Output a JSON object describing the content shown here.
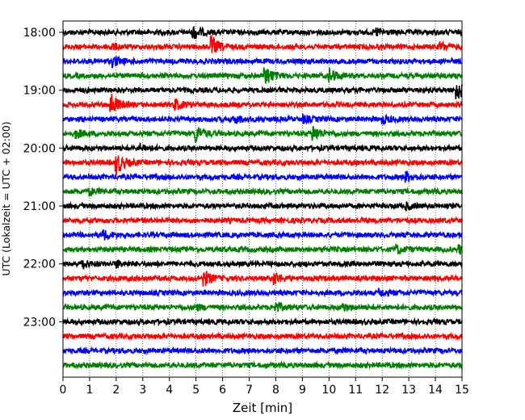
{
  "chart_data": {
    "type": "line",
    "xlabel": "Zeit  [min]",
    "ylabel": "UTC (Lokalzeit = UTC + 02:00)",
    "xlim": [
      0,
      15
    ],
    "x_ticks": [
      "0",
      "1",
      "2",
      "3",
      "4",
      "5",
      "6",
      "7",
      "8",
      "9",
      "10",
      "11",
      "12",
      "13",
      "14",
      "15"
    ],
    "y_tick_labels": [
      "18:00",
      "19:00",
      "20:00",
      "21:00",
      "22:00",
      "23:00"
    ],
    "grid": "vertical dotted lines at each minute",
    "trace_interval_min": 15,
    "trace_colors": [
      "#000000",
      "#ff0000",
      "#0000ff",
      "#008000"
    ],
    "traces": [
      {
        "start": "18:00",
        "color": "#000000",
        "events": [
          [
            4.9,
            0.9
          ],
          [
            11.8,
            0.5
          ]
        ]
      },
      {
        "start": "18:15",
        "color": "#ff0000",
        "events": [
          [
            1.8,
            0.4
          ],
          [
            5.6,
            1.2
          ],
          [
            14.2,
            0.5
          ]
        ]
      },
      {
        "start": "18:30",
        "color": "#0000ff",
        "events": [
          [
            1.9,
            0.6
          ]
        ]
      },
      {
        "start": "18:45",
        "color": "#008000",
        "events": [
          [
            7.6,
            1.3
          ],
          [
            10.0,
            1.0
          ]
        ]
      },
      {
        "start": "19:00",
        "color": "#000000",
        "events": [
          [
            14.8,
            1.3
          ]
        ]
      },
      {
        "start": "19:15",
        "color": "#ff0000",
        "events": [
          [
            1.8,
            1.5
          ],
          [
            4.2,
            0.7
          ]
        ]
      },
      {
        "start": "19:30",
        "color": "#0000ff",
        "events": [
          [
            6.5,
            0.5
          ],
          [
            9.0,
            0.5
          ],
          [
            12.0,
            0.5
          ]
        ]
      },
      {
        "start": "19:45",
        "color": "#008000",
        "events": [
          [
            0.5,
            0.5
          ],
          [
            5.0,
            1.1
          ],
          [
            9.4,
            1.0
          ]
        ]
      },
      {
        "start": "20:00",
        "color": "#000000",
        "events": [
          [
            2.9,
            0.4
          ]
        ]
      },
      {
        "start": "20:15",
        "color": "#ff0000",
        "events": [
          [
            2.0,
            1.5
          ]
        ]
      },
      {
        "start": "20:30",
        "color": "#0000ff",
        "events": [
          [
            12.9,
            0.6
          ]
        ]
      },
      {
        "start": "20:45",
        "color": "#008000",
        "events": [
          [
            1.0,
            0.4
          ]
        ]
      },
      {
        "start": "21:00",
        "color": "#000000",
        "events": [
          [
            12.9,
            0.4
          ]
        ]
      },
      {
        "start": "21:15",
        "color": "#ff0000",
        "events": []
      },
      {
        "start": "21:30",
        "color": "#0000ff",
        "events": [
          [
            1.5,
            0.6
          ]
        ]
      },
      {
        "start": "21:45",
        "color": "#008000",
        "events": [
          [
            12.5,
            0.6
          ],
          [
            14.9,
            0.5
          ]
        ]
      },
      {
        "start": "22:00",
        "color": "#000000",
        "events": [
          [
            0.7,
            0.6
          ],
          [
            2.0,
            0.4
          ]
        ]
      },
      {
        "start": "22:15",
        "color": "#ff0000",
        "events": [
          [
            5.3,
            1.0
          ],
          [
            7.9,
            0.9
          ]
        ]
      },
      {
        "start": "22:30",
        "color": "#0000ff",
        "events": [
          [
            11.9,
            0.4
          ]
        ]
      },
      {
        "start": "22:45",
        "color": "#008000",
        "events": [
          [
            5.0,
            0.3
          ],
          [
            8.0,
            0.6
          ],
          [
            10.5,
            0.5
          ]
        ]
      },
      {
        "start": "23:00",
        "color": "#000000",
        "events": []
      },
      {
        "start": "23:15",
        "color": "#ff0000",
        "events": []
      },
      {
        "start": "23:30",
        "color": "#0000ff",
        "events": []
      },
      {
        "start": "23:45",
        "color": "#008000",
        "events": []
      }
    ]
  }
}
